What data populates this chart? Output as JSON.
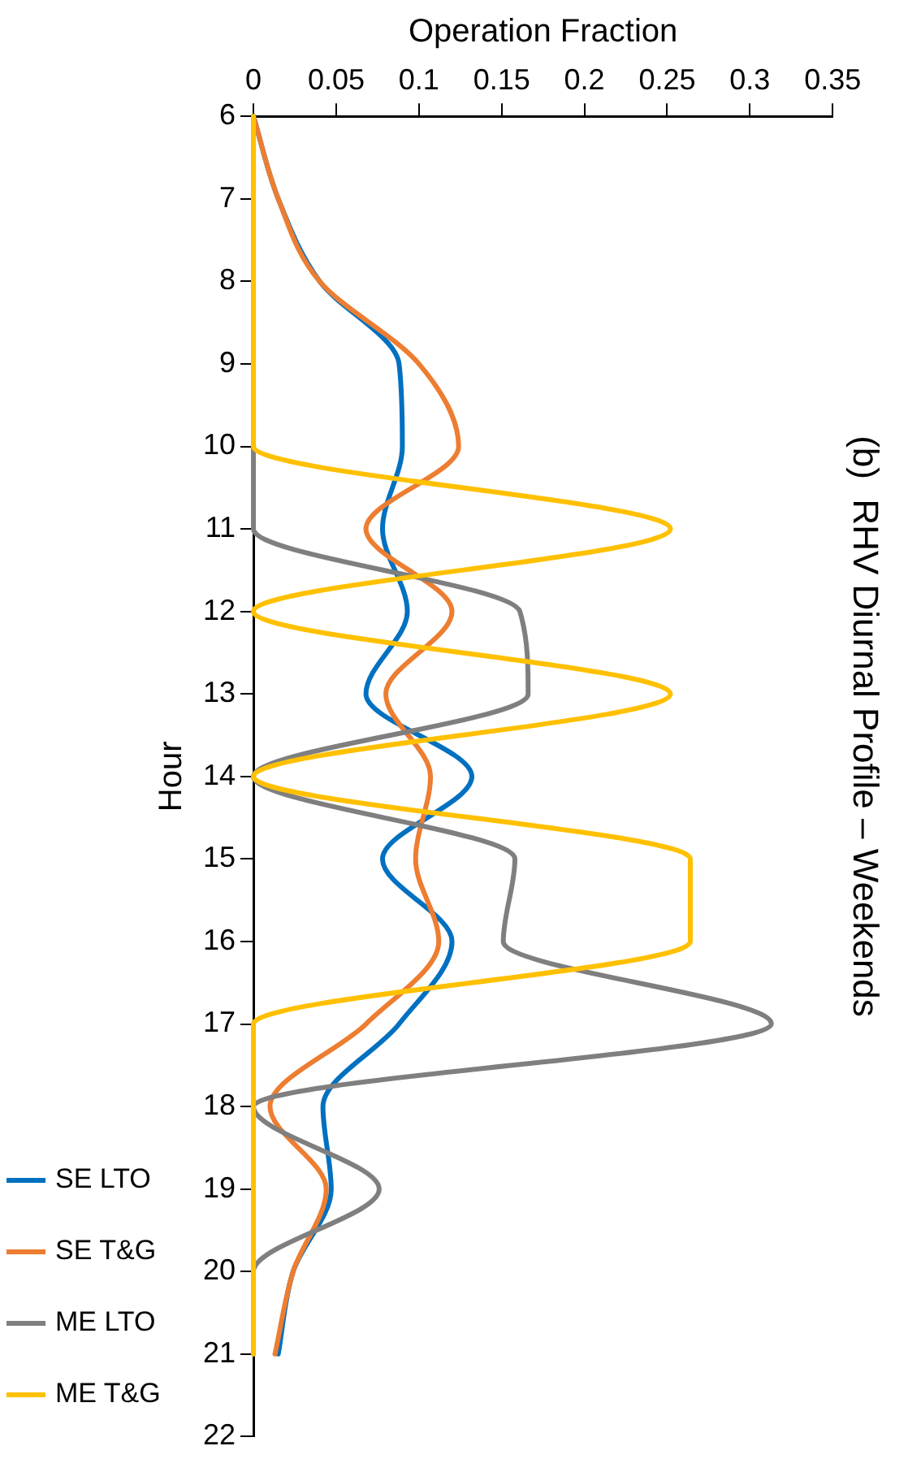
{
  "chart_data": {
    "type": "line",
    "orientation": "horizontal",
    "title": "(b)  RHV Diurnal Profile – Weekends",
    "xlabel": "Operation Fraction",
    "ylabel": "Hour",
    "x": [
      6,
      7,
      8,
      9,
      10,
      11,
      12,
      13,
      14,
      15,
      16,
      17,
      18,
      19,
      20,
      21
    ],
    "series": [
      {
        "name": "SE LTO",
        "color": "#0070c0",
        "values": [
          0,
          0.015,
          0.04,
          0.088,
          0.09,
          0.078,
          0.093,
          0.068,
          0.132,
          0.078,
          0.12,
          0.088,
          0.042,
          0.047,
          0.024,
          0.015
        ]
      },
      {
        "name": "SE T&G",
        "color": "#ed7d31",
        "values": [
          0,
          0.015,
          0.04,
          0.1,
          0.124,
          0.068,
          0.12,
          0.08,
          0.107,
          0.098,
          0.112,
          0.068,
          0.01,
          0.044,
          0.024,
          0.013
        ]
      },
      {
        "name": "ME LTO",
        "color": "#7f7f7f",
        "values": [
          0,
          0,
          0,
          0,
          0,
          0,
          0.161,
          0.166,
          0,
          0.158,
          0.151,
          0.313,
          0,
          0.076,
          0,
          0
        ]
      },
      {
        "name": "ME T&G",
        "color": "#ffc000",
        "values": [
          0,
          0,
          0,
          0,
          0,
          0.252,
          0,
          0.252,
          0,
          0.264,
          0.264,
          0,
          0,
          0,
          0,
          0
        ]
      }
    ],
    "xlim": [
      0,
      0.35
    ],
    "xticks": [
      0,
      0.05,
      0.1,
      0.15,
      0.2,
      0.25,
      0.3,
      0.35
    ],
    "ylim": [
      22,
      6
    ],
    "yticks": [
      6,
      7,
      8,
      9,
      10,
      11,
      12,
      13,
      14,
      15,
      16,
      17,
      18,
      19,
      20,
      21,
      22
    ],
    "legend": "left",
    "marker": "none",
    "line_style": "solid"
  }
}
